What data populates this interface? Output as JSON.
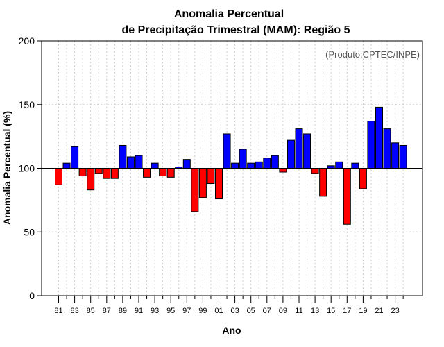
{
  "chart_data": {
    "type": "bar",
    "title_line1": "Anomalia Percentual",
    "title_line2": "de Precipitação Trimestral (MAM): Região 5",
    "xlabel": "Ano",
    "ylabel": "Anomalia Percentual (%)",
    "source": "(Produto:CPTEC/INPE)",
    "baseline": 100,
    "ylim": [
      0,
      200
    ],
    "yticks": [
      0,
      50,
      100,
      150,
      200
    ],
    "categories": [
      "81",
      "82",
      "83",
      "84",
      "85",
      "86",
      "87",
      "88",
      "89",
      "90",
      "91",
      "92",
      "93",
      "94",
      "95",
      "96",
      "97",
      "98",
      "99",
      "00",
      "01",
      "02",
      "03",
      "04",
      "05",
      "06",
      "07",
      "08",
      "09",
      "10",
      "11",
      "12",
      "13",
      "14",
      "15",
      "16",
      "17",
      "18",
      "19",
      "20",
      "21",
      "22",
      "23",
      "24"
    ],
    "tick_labels_shown": [
      "81",
      "83",
      "85",
      "87",
      "89",
      "91",
      "93",
      "95",
      "97",
      "99",
      "01",
      "03",
      "05",
      "07",
      "09",
      "11",
      "13",
      "15",
      "17",
      "19",
      "21",
      "23"
    ],
    "values": [
      87,
      104,
      117,
      94,
      83,
      96,
      92,
      92,
      118,
      109,
      110,
      93,
      104,
      94,
      93,
      101,
      107,
      66,
      77,
      88,
      76,
      127,
      104,
      115,
      104,
      105,
      108,
      110,
      97,
      122,
      131,
      127,
      96,
      78,
      102,
      105,
      56,
      104,
      84,
      137,
      148,
      131,
      120,
      118
    ],
    "colors": {
      "above": "#0000ff",
      "below": "#ff0000",
      "grid": "#cccccc"
    }
  }
}
